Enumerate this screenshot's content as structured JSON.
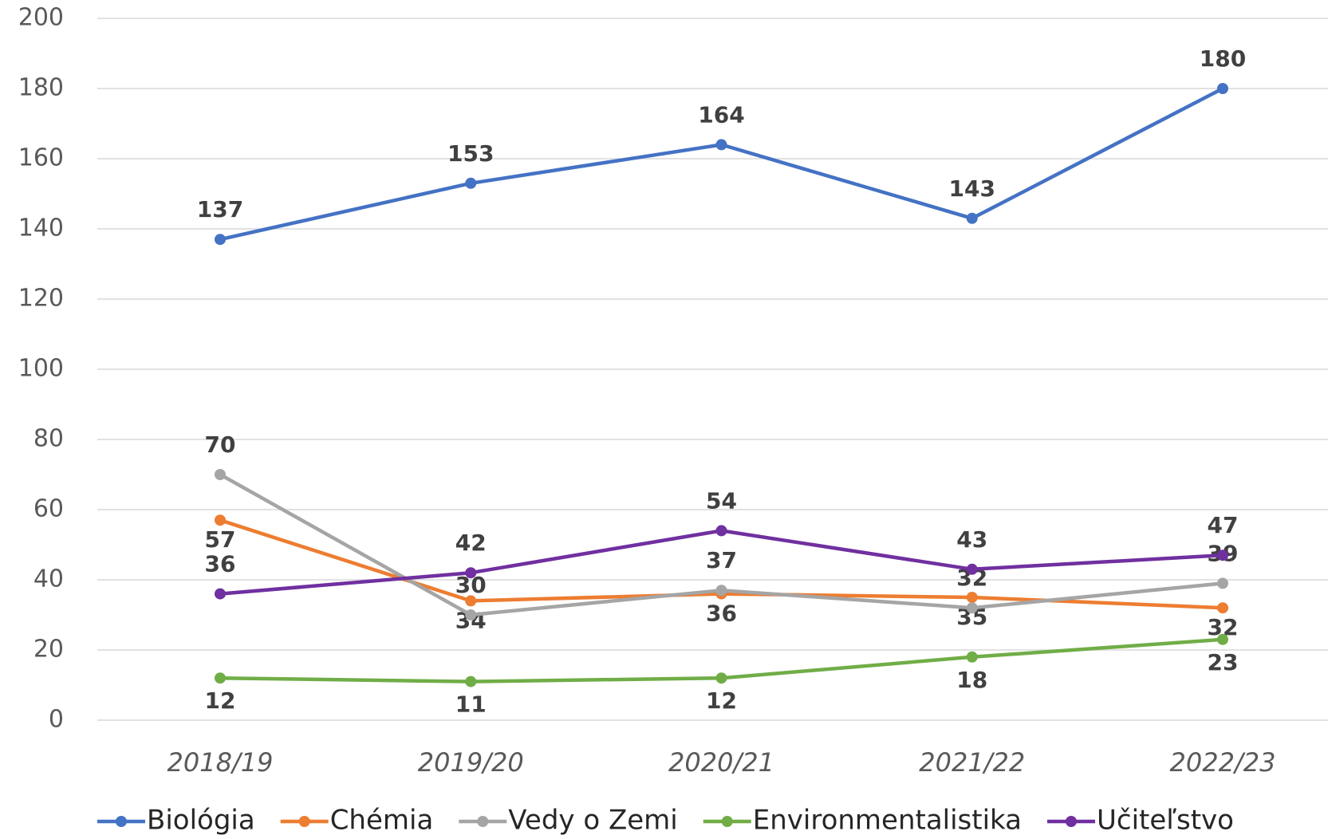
{
  "chart_data": {
    "type": "line",
    "categories": [
      "2018/19",
      "2019/20",
      "2020/21",
      "2021/22",
      "2022/23"
    ],
    "series": [
      {
        "name": "Biológia",
        "color": "#4472c4",
        "values": [
          137,
          153,
          164,
          143,
          180
        ]
      },
      {
        "name": "Chémia",
        "color": "#ed7d31",
        "values": [
          57,
          34,
          36,
          35,
          32
        ]
      },
      {
        "name": "Vedy o Zemi",
        "color": "#a5a5a5",
        "values": [
          70,
          30,
          37,
          32,
          39
        ]
      },
      {
        "name": "Environmentalistika",
        "color": "#70ad47",
        "values": [
          12,
          11,
          12,
          18,
          23
        ]
      },
      {
        "name": "Učiteľstvo",
        "color": "#7030a0",
        "values": [
          36,
          42,
          54,
          43,
          47
        ]
      }
    ],
    "ylim": [
      0,
      200
    ],
    "yticks": [
      0,
      20,
      40,
      60,
      80,
      100,
      120,
      140,
      160,
      180,
      200
    ],
    "grid": true,
    "legend": "bottom"
  }
}
